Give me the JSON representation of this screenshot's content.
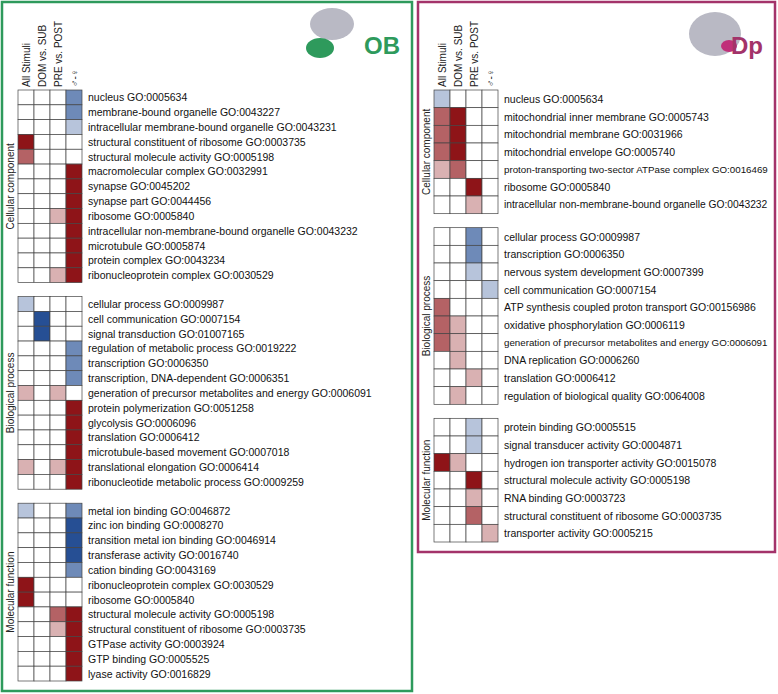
{
  "chart_data": [
    {
      "type": "heatmap",
      "title": "OB",
      "columns": [
        "All Stimuli",
        "DOM vs. SUB",
        "PRE vs. POST",
        "♂-♀"
      ],
      "color_range": [
        -3,
        3
      ],
      "groups": [
        {
          "name": "Cellular component",
          "rows": [
            "nucleus GO:0005634",
            "membrane-bound organelle GO:0043227",
            "intracellular membrane-bound organelle GO:0043231",
            "structural constituent of ribosome GO:0003735",
            "structural molecule activity GO:0005198",
            "macromolecular complex GO:0032991",
            "synapse GO:0045202",
            "synapse part GO:0044456",
            "ribosome GO:0005840",
            "intracellular non-membrane-bound organelle GO:0043232",
            "microtubule GO:0005874",
            "protein complex GO:0043234",
            "ribonucleoprotein complex GO:0030529"
          ],
          "cells": [
            [
              null,
              null,
              null,
              -2
            ],
            [
              null,
              null,
              null,
              -2
            ],
            [
              null,
              null,
              null,
              -1
            ],
            [
              3,
              null,
              null,
              null
            ],
            [
              2,
              null,
              null,
              null
            ],
            [
              null,
              null,
              null,
              3
            ],
            [
              null,
              null,
              null,
              3
            ],
            [
              null,
              null,
              null,
              3
            ],
            [
              null,
              null,
              1,
              3
            ],
            [
              null,
              null,
              null,
              3
            ],
            [
              null,
              null,
              null,
              3
            ],
            [
              null,
              null,
              null,
              3
            ],
            [
              null,
              null,
              1,
              3
            ]
          ]
        },
        {
          "name": "Biological process",
          "rows": [
            "cellular process GO:0009987",
            "cell communication GO:0007154",
            "signal transduction GO:01007165",
            "regulation of metabolic process GO:0019222",
            "transcription GO:0006350",
            "transcription, DNA-dependent GO:0006351",
            "generation of precursor metabolites and energy GO:0006091",
            "protein polymerization GO:0051258",
            "glycolysis GO:0006096",
            "translation GO:0006412",
            "microtubule-based movement GO:0007018",
            "translational elongation GO:0006414",
            "ribonucleotide metabolic process GO:0009259"
          ],
          "cells": [
            [
              -1,
              null,
              null,
              null
            ],
            [
              null,
              -3,
              null,
              null
            ],
            [
              null,
              -3,
              null,
              null
            ],
            [
              null,
              null,
              null,
              -2
            ],
            [
              null,
              null,
              null,
              -2
            ],
            [
              null,
              null,
              null,
              -2
            ],
            [
              1,
              null,
              1,
              null
            ],
            [
              null,
              null,
              null,
              3
            ],
            [
              null,
              null,
              null,
              3
            ],
            [
              null,
              null,
              null,
              3
            ],
            [
              null,
              null,
              null,
              3
            ],
            [
              1,
              null,
              1,
              3
            ],
            [
              null,
              null,
              null,
              3
            ]
          ]
        },
        {
          "name": "Molecular function",
          "rows": [
            "metal ion binding GO:0046872",
            "zinc ion binding GO:0008270",
            "transition metal ion binding GO:0046914",
            "transferase activity GO:0016740",
            "cation binding GO:0043169",
            "ribonucleoprotein complex GO:0030529",
            "ribosome GO:0005840",
            "structural molecule activity GO:0005198",
            "structural constituent of ribosome GO:0003735",
            "GTPase activity GO:0003924",
            "GTP binding GO:0005525",
            "lyase activity GO:0016829"
          ],
          "cells": [
            [
              -1,
              null,
              null,
              -2
            ],
            [
              null,
              null,
              null,
              -3
            ],
            [
              null,
              null,
              null,
              -3
            ],
            [
              null,
              null,
              null,
              -3
            ],
            [
              null,
              null,
              null,
              -2
            ],
            [
              3,
              null,
              null,
              null
            ],
            [
              3,
              null,
              null,
              null
            ],
            [
              null,
              null,
              2,
              3
            ],
            [
              null,
              null,
              1,
              3
            ],
            [
              null,
              null,
              null,
              3
            ],
            [
              null,
              null,
              null,
              3
            ],
            [
              null,
              null,
              null,
              3
            ]
          ]
        }
      ]
    },
    {
      "type": "heatmap",
      "title": "Dp",
      "columns": [
        "All Stimuli",
        "DOM vs. SUB",
        "PRE vs. POST",
        "♂-♀"
      ],
      "color_range": [
        -3,
        3
      ],
      "groups": [
        {
          "name": "Cellular component",
          "rows": [
            "nucleus GO:0005634",
            "mitochondrial inner membrane GO:0005743",
            "mitochondrial membrane GO:0031966",
            "mitochondrial envelope GO:0005740",
            "proton-transporting two-sector ATPase complex GO:0016469",
            "ribosome GO:0005840",
            "intracellular non-membrane-bound organelle GO:0043232"
          ],
          "cells": [
            [
              -1,
              null,
              null,
              null
            ],
            [
              2,
              3,
              null,
              null
            ],
            [
              2,
              3,
              null,
              null
            ],
            [
              2,
              3,
              null,
              null
            ],
            [
              1,
              2,
              null,
              null
            ],
            [
              null,
              null,
              3,
              null
            ],
            [
              null,
              null,
              1,
              null
            ]
          ]
        },
        {
          "name": "Biological process",
          "rows": [
            "cellular process GO:0009987",
            "transcription GO:0006350",
            "nervous system development GO:0007399",
            "cell communication GO:0007154",
            "ATP synthesis coupled proton transport GO:00156986",
            "oxidative phosphorylation GO:0006119",
            "generation of precursor metabolites and energy GO:0006091",
            "DNA replication GO:0006260",
            "translation GO:0006412",
            "regulation of biological quality GO:0064008"
          ],
          "cells": [
            [
              null,
              null,
              -2,
              null
            ],
            [
              null,
              null,
              -2,
              null
            ],
            [
              null,
              null,
              -1,
              null
            ],
            [
              null,
              null,
              null,
              -1
            ],
            [
              2,
              null,
              null,
              null
            ],
            [
              2,
              1,
              null,
              null
            ],
            [
              2,
              1,
              null,
              null
            ],
            [
              null,
              1,
              null,
              null
            ],
            [
              null,
              null,
              1,
              null
            ],
            [
              null,
              1,
              null,
              null
            ]
          ]
        },
        {
          "name": "Molecular function",
          "rows": [
            "protein binding GO:0005515",
            "signal transducer activity GO:0004871",
            "hydrogen ion transporter activity GO:0015078",
            "structural molecule activity GO:0005198",
            "RNA binding GO:0003723",
            "structural constituent of ribosome GO:0003735",
            "transporter activity GO:0005215"
          ],
          "cells": [
            [
              null,
              null,
              -1,
              null
            ],
            [
              null,
              null,
              -1,
              null
            ],
            [
              3,
              1,
              null,
              null
            ],
            [
              null,
              null,
              3,
              null
            ],
            [
              null,
              null,
              1,
              null
            ],
            [
              null,
              null,
              2,
              null
            ],
            [
              null,
              null,
              null,
              1
            ]
          ]
        }
      ]
    }
  ]
}
